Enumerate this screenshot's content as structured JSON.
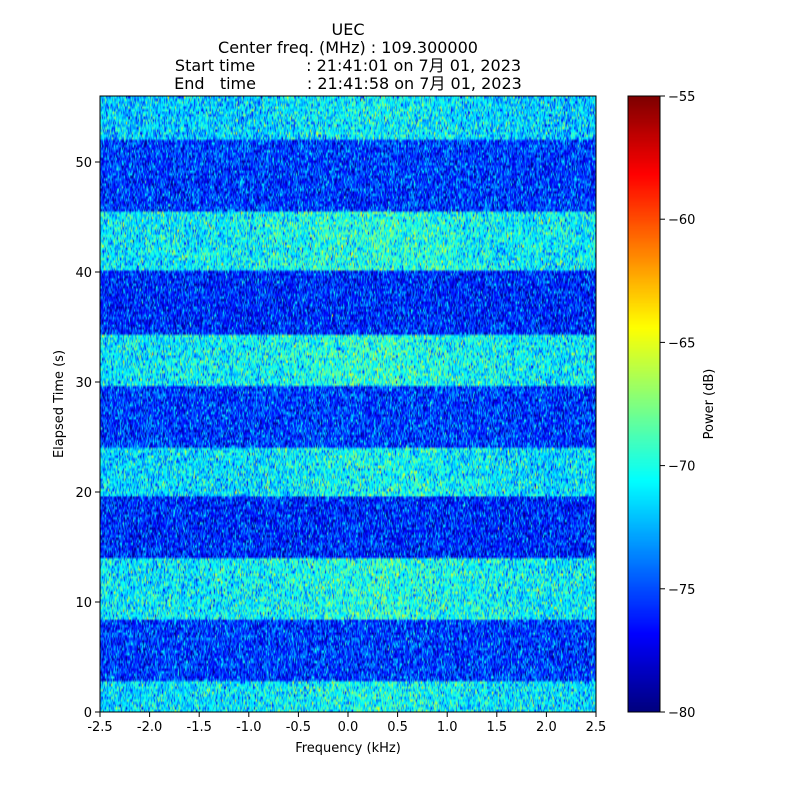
{
  "chart_data": {
    "type": "heatmap",
    "title_lines": [
      "UEC",
      "Center freq. (MHz) : 109.300000",
      "Start time          : 21:41:01 on 7月 01, 2023",
      "End   time          : 21:41:58 on 7月 01, 2023"
    ],
    "xlabel": "Frequency (kHz)",
    "ylabel": "Elapsed Time (s)",
    "xlim": [
      -2.5,
      2.5
    ],
    "ylim": [
      0,
      56
    ],
    "x_ticks": [
      -2.5,
      -2.0,
      -1.5,
      -1.0,
      -0.5,
      0.0,
      0.5,
      1.0,
      1.5,
      2.0,
      2.5
    ],
    "x_tick_labels": [
      "-2.5",
      "-2.0",
      "-1.5",
      "-1.0",
      "-0.5",
      "0.0",
      "0.5",
      "1.0",
      "1.5",
      "2.0",
      "2.5"
    ],
    "y_ticks": [
      0,
      10,
      20,
      30,
      40,
      50
    ],
    "y_tick_labels": [
      "0",
      "10",
      "20",
      "30",
      "40",
      "50"
    ],
    "colorbar": {
      "label": "Power (dB)",
      "range": [
        -80,
        -55
      ],
      "ticks": [
        -80,
        -75,
        -70,
        -65,
        -60,
        -55
      ],
      "tick_labels": [
        "−80",
        "−75",
        "−70",
        "−65",
        "−60",
        "−55"
      ],
      "colormap": "jet"
    },
    "bands": [
      {
        "t_start": 0.0,
        "t_end": 2.9,
        "level": "high",
        "mean_db": -71.5
      },
      {
        "t_start": 2.9,
        "t_end": 8.5,
        "level": "low",
        "mean_db": -75.5
      },
      {
        "t_start": 8.5,
        "t_end": 14.0,
        "level": "high",
        "mean_db": -71.0
      },
      {
        "t_start": 14.0,
        "t_end": 19.6,
        "level": "low",
        "mean_db": -76.0
      },
      {
        "t_start": 19.6,
        "t_end": 24.0,
        "level": "high",
        "mean_db": -71.5
      },
      {
        "t_start": 24.0,
        "t_end": 29.6,
        "level": "low",
        "mean_db": -75.5
      },
      {
        "t_start": 29.6,
        "t_end": 34.2,
        "level": "high",
        "mean_db": -71.0
      },
      {
        "t_start": 34.2,
        "t_end": 40.1,
        "level": "low",
        "mean_db": -76.0
      },
      {
        "t_start": 40.1,
        "t_end": 45.6,
        "level": "high",
        "mean_db": -71.0
      },
      {
        "t_start": 45.6,
        "t_end": 52.0,
        "level": "low",
        "mean_db": -75.5
      },
      {
        "t_start": 52.0,
        "t_end": 56.0,
        "level": "high",
        "mean_db": -72.0
      }
    ],
    "grid": false
  }
}
